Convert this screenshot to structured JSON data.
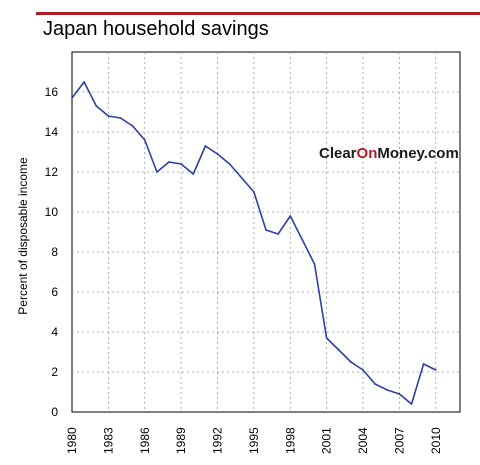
{
  "chart_data": {
    "type": "line",
    "title": "Japan household savings",
    "xlabel": "",
    "ylabel": "Percent of disposable income",
    "xlim": [
      1980,
      2012
    ],
    "ylim": [
      0,
      18
    ],
    "x_ticks": [
      "1980",
      "1983",
      "1986",
      "1989",
      "1992",
      "1995",
      "1998",
      "2001",
      "2004",
      "2007",
      "2010"
    ],
    "y_ticks": [
      "0",
      "2",
      "4",
      "6",
      "8",
      "10",
      "12",
      "14",
      "16"
    ],
    "grid": true,
    "line_color": "#2e3fa8",
    "accent_color": "#b01e23",
    "watermark": {
      "part1": "Clear",
      "part2": "On",
      "part3": "Money.com",
      "color_dark": "#1a1a1a",
      "color_accent": "#b01e23"
    },
    "series": [
      {
        "x": [
          1980,
          1981,
          1982,
          1983,
          1984,
          1985,
          1986,
          1987,
          1988,
          1989,
          1990,
          1991,
          1992,
          1993,
          1994,
          1995,
          1996,
          1997,
          1998,
          1999,
          2000,
          2001,
          2002,
          2003,
          2004,
          2005,
          2006,
          2007,
          2008,
          2009,
          2010
        ],
        "values": [
          15.7,
          16.5,
          15.3,
          14.8,
          14.7,
          14.3,
          13.6,
          12.0,
          12.5,
          12.4,
          11.9,
          13.3,
          12.9,
          12.4,
          11.7,
          11.0,
          9.1,
          8.9,
          9.8,
          8.6,
          7.4,
          3.7,
          3.1,
          2.5,
          2.1,
          1.4,
          1.1,
          0.9,
          0.4,
          2.4,
          2.1
        ]
      }
    ]
  }
}
